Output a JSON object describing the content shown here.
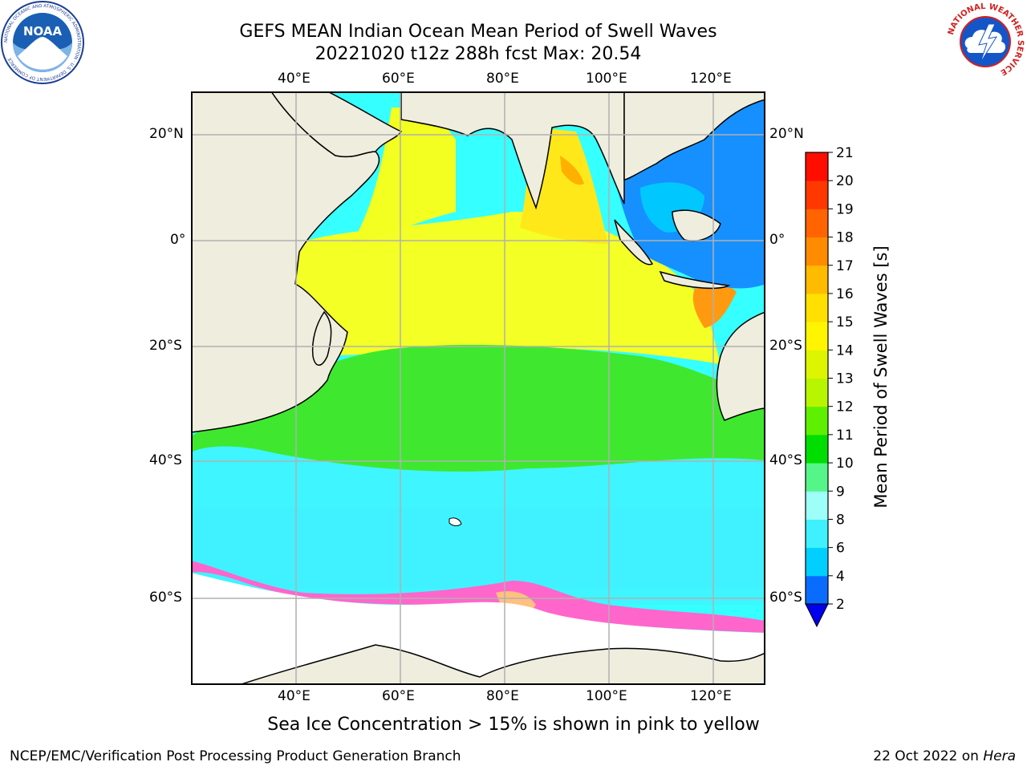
{
  "title": {
    "line1": "GEFS MEAN Indian Ocean Mean Period of Swell Waves",
    "line2": "20221020 t12z 288h fcst   Max: 20.54"
  },
  "map": {
    "lon_labels": [
      "40°E",
      "60°E",
      "80°E",
      "100°E",
      "120°E"
    ],
    "lat_labels_left": [
      "20°N",
      "0°",
      "20°S",
      "40°S",
      "60°S"
    ],
    "lat_labels_right": [
      "20°N",
      "0°",
      "20°S",
      "40°S",
      "60°S"
    ],
    "extent": {
      "lon": [
        20,
        130
      ],
      "lat": [
        -72,
        28
      ]
    },
    "gridlines": true,
    "land_color": "#efedde",
    "sea_ice_colors": [
      "#ff66cc",
      "#ff99cc",
      "#ffc080",
      "#ffd966"
    ]
  },
  "colorbar": {
    "label": "Mean Period of Swell Waves [s]",
    "ticks": [
      "2",
      "4",
      "6",
      "8",
      "9",
      "10",
      "11",
      "12",
      "13",
      "14",
      "15",
      "16",
      "17",
      "18",
      "19",
      "20",
      "21"
    ],
    "colors": [
      "#0a6cff",
      "#00cfff",
      "#3ff0ff",
      "#9dfff8",
      "#55f58a",
      "#00dd00",
      "#5ef000",
      "#b8f500",
      "#ddf500",
      "#fff500",
      "#ffe000",
      "#ffbb00",
      "#ff8c00",
      "#ff6400",
      "#ff3800",
      "#ff0e00"
    ],
    "under_color": "#0000ee"
  },
  "sea_ice_note": "Sea Ice Concentration > 15% is shown in pink to yellow",
  "footer": {
    "left": "NCEP/EMC/Verification Post Processing Product Generation Branch",
    "date": "22 Oct 2022 on ",
    "machine": "Hera"
  },
  "logos": {
    "noaa_text": "NOAA",
    "noaa_ring": "NATIONAL OCEANIC AND ATMOSPHERIC ADMINISTRATION · U.S. DEPARTMENT OF COMMERCE",
    "nws_ring": "NATIONAL WEATHER SERVICE"
  }
}
